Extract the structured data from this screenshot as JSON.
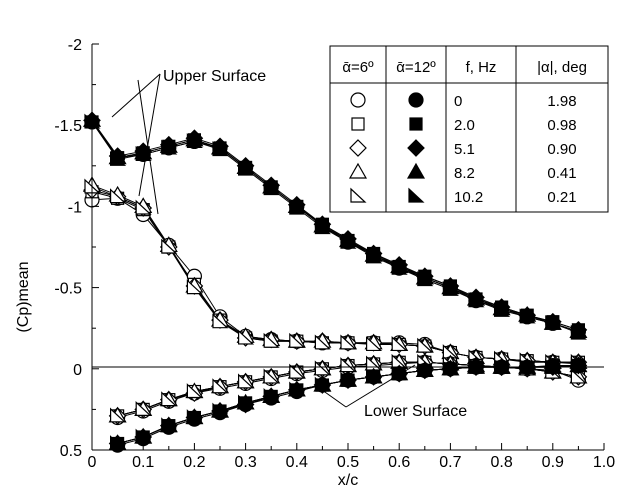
{
  "chart_data": {
    "type": "line",
    "xlabel": "x/c",
    "ylabel": "(Cp)mean",
    "xlim": [
      0,
      1.0
    ],
    "ylim": [
      0.5,
      -2
    ],
    "y_axis_inverted": true,
    "xticks": [
      "0",
      "0.1",
      "0.2",
      "0.3",
      "0.4",
      "0.5",
      "0.6",
      "0.7",
      "0.8",
      "0.9",
      "1.0"
    ],
    "yticks": [
      "-2",
      "-1.5",
      "-1",
      "-0.5",
      "0",
      "0.5"
    ],
    "grid": false,
    "zero_line": true,
    "annotations": {
      "upper": "Upper Surface",
      "lower": "Lower Surface"
    },
    "legend": {
      "placement": "top-right",
      "headers": [
        "ᾱ=6º",
        "ᾱ=12º",
        "f, Hz",
        "|α|, deg"
      ],
      "rows": [
        {
          "open_marker": "circle",
          "filled_marker": "circle",
          "f": "0",
          "amp": "1.98"
        },
        {
          "open_marker": "square",
          "filled_marker": "square",
          "f": "2.0",
          "amp": "0.98"
        },
        {
          "open_marker": "diamond",
          "filled_marker": "diamond",
          "f": "5.1",
          "amp": "0.90"
        },
        {
          "open_marker": "triangle",
          "filled_marker": "triangle",
          "f": "8.2",
          "amp": "0.41"
        },
        {
          "open_marker": "right-triangle",
          "filled_marker": "right-triangle",
          "f": "10.2",
          "amp": "0.21"
        }
      ]
    },
    "x": [
      0.0,
      0.05,
      0.1,
      0.15,
      0.2,
      0.25,
      0.3,
      0.35,
      0.4,
      0.45,
      0.5,
      0.55,
      0.6,
      0.65,
      0.7,
      0.75,
      0.8,
      0.85,
      0.9,
      0.95
    ],
    "series": [
      {
        "group": "alpha6",
        "surface": "upper",
        "marker": "circle",
        "values": [
          -1.04,
          -1.05,
          -0.95,
          -0.76,
          -0.57,
          -0.32,
          -0.2,
          -0.18,
          -0.17,
          -0.16,
          -0.16,
          -0.16,
          -0.16,
          -0.15,
          -0.1,
          -0.07,
          -0.06,
          -0.04,
          -0.04,
          -0.03
        ]
      },
      {
        "group": "alpha6",
        "surface": "upper",
        "marker": "square",
        "values": [
          -1.09,
          -1.05,
          -0.98,
          -0.75,
          -0.52,
          -0.3,
          -0.19,
          -0.17,
          -0.17,
          -0.16,
          -0.16,
          -0.16,
          -0.15,
          -0.14,
          -0.1,
          -0.07,
          -0.06,
          -0.05,
          -0.04,
          -0.04
        ]
      },
      {
        "group": "alpha6",
        "surface": "upper",
        "marker": "diamond",
        "values": [
          -1.1,
          -1.06,
          -0.99,
          -0.75,
          -0.51,
          -0.3,
          -0.19,
          -0.18,
          -0.17,
          -0.17,
          -0.16,
          -0.16,
          -0.15,
          -0.14,
          -0.1,
          -0.07,
          -0.06,
          -0.05,
          -0.04,
          -0.04
        ]
      },
      {
        "group": "alpha6",
        "surface": "upper",
        "marker": "triangle",
        "values": [
          -1.13,
          -1.07,
          -1.0,
          -0.76,
          -0.51,
          -0.3,
          -0.2,
          -0.18,
          -0.17,
          -0.17,
          -0.16,
          -0.16,
          -0.15,
          -0.14,
          -0.1,
          -0.07,
          -0.06,
          -0.05,
          -0.04,
          -0.04
        ]
      },
      {
        "group": "alpha6",
        "surface": "upper",
        "marker": "right-triangle",
        "values": [
          -1.12,
          -1.06,
          -0.99,
          -0.75,
          -0.5,
          -0.29,
          -0.19,
          -0.17,
          -0.17,
          -0.16,
          -0.16,
          -0.15,
          -0.15,
          -0.14,
          -0.1,
          -0.07,
          -0.06,
          -0.05,
          -0.04,
          -0.04
        ]
      },
      {
        "group": "alpha6",
        "surface": "lower",
        "marker": "circle",
        "values": [
          null,
          0.3,
          0.26,
          0.2,
          0.15,
          0.12,
          0.09,
          0.06,
          0.03,
          0.01,
          -0.01,
          -0.02,
          -0.03,
          -0.04,
          -0.03,
          -0.02,
          -0.01,
          0.0,
          0.01,
          0.07
        ]
      },
      {
        "group": "alpha6",
        "surface": "lower",
        "marker": "square",
        "values": [
          null,
          0.29,
          0.25,
          0.19,
          0.14,
          0.11,
          0.08,
          0.05,
          0.02,
          0.0,
          -0.02,
          -0.03,
          -0.04,
          -0.04,
          -0.03,
          -0.02,
          -0.01,
          0.0,
          0.02,
          0.05
        ]
      },
      {
        "group": "alpha6",
        "surface": "lower",
        "marker": "diamond",
        "values": [
          null,
          0.29,
          0.25,
          0.19,
          0.15,
          0.11,
          0.08,
          0.05,
          0.02,
          0.0,
          -0.02,
          -0.03,
          -0.04,
          -0.04,
          -0.03,
          -0.02,
          -0.01,
          0.0,
          0.02,
          0.05
        ]
      },
      {
        "group": "alpha6",
        "surface": "lower",
        "marker": "triangle",
        "values": [
          null,
          0.29,
          0.25,
          0.19,
          0.14,
          0.11,
          0.08,
          0.05,
          0.02,
          0.0,
          -0.02,
          -0.03,
          -0.04,
          -0.04,
          -0.03,
          -0.02,
          -0.01,
          0.0,
          0.02,
          0.05
        ]
      },
      {
        "group": "alpha6",
        "surface": "lower",
        "marker": "right-triangle",
        "values": [
          null,
          0.29,
          0.25,
          0.19,
          0.14,
          0.11,
          0.08,
          0.05,
          0.02,
          0.0,
          -0.02,
          -0.03,
          -0.04,
          -0.04,
          -0.03,
          -0.02,
          -0.01,
          0.0,
          0.02,
          0.05
        ]
      },
      {
        "group": "alpha12",
        "surface": "upper",
        "marker": "circle",
        "values": [
          -1.52,
          -1.3,
          -1.32,
          -1.36,
          -1.4,
          -1.36,
          -1.24,
          -1.12,
          -1.0,
          -0.88,
          -0.78,
          -0.7,
          -0.62,
          -0.56,
          -0.5,
          -0.42,
          -0.37,
          -0.32,
          -0.28,
          -0.23
        ]
      },
      {
        "group": "alpha12",
        "surface": "upper",
        "marker": "square",
        "values": [
          -1.52,
          -1.3,
          -1.33,
          -1.37,
          -1.41,
          -1.36,
          -1.24,
          -1.12,
          -1.0,
          -0.89,
          -0.79,
          -0.71,
          -0.63,
          -0.57,
          -0.51,
          -0.43,
          -0.38,
          -0.33,
          -0.29,
          -0.24
        ]
      },
      {
        "group": "alpha12",
        "surface": "upper",
        "marker": "diamond",
        "values": [
          -1.53,
          -1.31,
          -1.34,
          -1.38,
          -1.42,
          -1.37,
          -1.25,
          -1.13,
          -1.01,
          -0.89,
          -0.8,
          -0.71,
          -0.64,
          -0.57,
          -0.51,
          -0.44,
          -0.38,
          -0.33,
          -0.29,
          -0.24
        ]
      },
      {
        "group": "alpha12",
        "surface": "upper",
        "marker": "triangle",
        "values": [
          -1.53,
          -1.3,
          -1.33,
          -1.37,
          -1.41,
          -1.36,
          -1.24,
          -1.12,
          -1.0,
          -0.88,
          -0.79,
          -0.7,
          -0.63,
          -0.56,
          -0.5,
          -0.43,
          -0.37,
          -0.33,
          -0.28,
          -0.23
        ]
      },
      {
        "group": "alpha12",
        "surface": "upper",
        "marker": "right-triangle",
        "values": [
          -1.52,
          -1.29,
          -1.32,
          -1.36,
          -1.4,
          -1.35,
          -1.23,
          -1.11,
          -0.99,
          -0.87,
          -0.78,
          -0.69,
          -0.62,
          -0.55,
          -0.49,
          -0.42,
          -0.36,
          -0.32,
          -0.28,
          -0.22
        ]
      },
      {
        "group": "alpha12",
        "surface": "lower",
        "marker": "circle",
        "values": [
          null,
          0.47,
          0.43,
          0.36,
          0.31,
          0.27,
          0.22,
          0.18,
          0.14,
          0.1,
          0.07,
          0.05,
          0.03,
          0.01,
          0.0,
          -0.01,
          -0.01,
          -0.01,
          -0.02,
          -0.02
        ]
      },
      {
        "group": "alpha12",
        "surface": "lower",
        "marker": "square",
        "values": [
          null,
          0.46,
          0.42,
          0.35,
          0.3,
          0.26,
          0.21,
          0.17,
          0.13,
          0.1,
          0.07,
          0.05,
          0.03,
          0.01,
          0.0,
          -0.01,
          -0.01,
          -0.01,
          -0.01,
          -0.02
        ]
      },
      {
        "group": "alpha12",
        "surface": "lower",
        "marker": "diamond",
        "values": [
          null,
          0.46,
          0.42,
          0.35,
          0.3,
          0.26,
          0.22,
          0.17,
          0.13,
          0.1,
          0.07,
          0.05,
          0.03,
          0.01,
          0.0,
          -0.01,
          -0.01,
          -0.01,
          -0.01,
          -0.02
        ]
      },
      {
        "group": "alpha12",
        "surface": "lower",
        "marker": "triangle",
        "values": [
          null,
          0.46,
          0.42,
          0.35,
          0.3,
          0.26,
          0.21,
          0.17,
          0.13,
          0.1,
          0.07,
          0.05,
          0.03,
          0.01,
          0.0,
          -0.01,
          -0.01,
          -0.01,
          -0.01,
          -0.02
        ]
      },
      {
        "group": "alpha12",
        "surface": "lower",
        "marker": "right-triangle",
        "values": [
          null,
          0.46,
          0.42,
          0.35,
          0.3,
          0.26,
          0.21,
          0.17,
          0.13,
          0.1,
          0.07,
          0.05,
          0.03,
          0.01,
          0.0,
          -0.01,
          -0.01,
          -0.01,
          -0.01,
          -0.02
        ]
      }
    ]
  }
}
